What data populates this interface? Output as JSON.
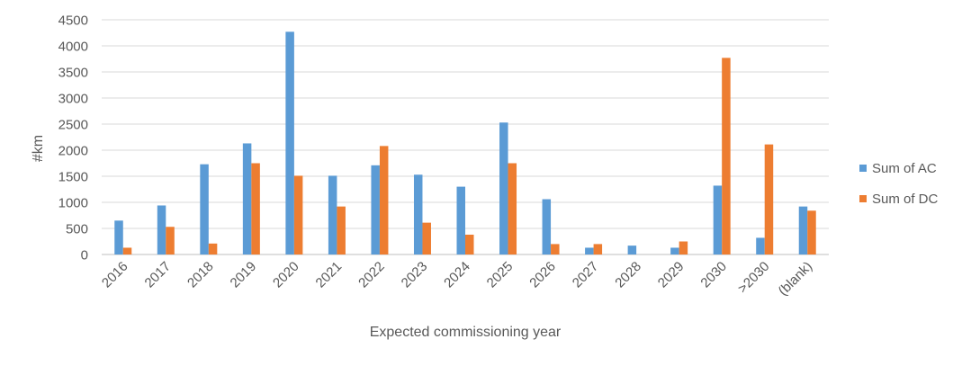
{
  "chart_data": {
    "type": "bar",
    "title": "",
    "xlabel": "Expected commissioning year",
    "ylabel": "#km",
    "ylim": [
      0,
      4500
    ],
    "yticks": [
      0,
      500,
      1000,
      1500,
      2000,
      2500,
      3000,
      3500,
      4000,
      4500
    ],
    "grid": true,
    "legend_position": "right",
    "categories": [
      "2016",
      "2017",
      "2018",
      "2019",
      "2020",
      "2021",
      "2022",
      "2023",
      "2024",
      "2025",
      "2026",
      "2027",
      "2028",
      "2029",
      "2030",
      ">2030",
      "(blank)"
    ],
    "series": [
      {
        "name": "Sum of AC",
        "color": "#5b9bd5",
        "values": [
          650,
          940,
          1730,
          2130,
          4270,
          1510,
          1710,
          1530,
          1300,
          2530,
          1060,
          130,
          170,
          130,
          1320,
          320,
          920
        ]
      },
      {
        "name": "Sum of DC",
        "color": "#ed7d31",
        "values": [
          130,
          530,
          210,
          1750,
          1510,
          920,
          2080,
          610,
          380,
          1750,
          200,
          200,
          0,
          250,
          3770,
          2110,
          840
        ]
      }
    ]
  }
}
